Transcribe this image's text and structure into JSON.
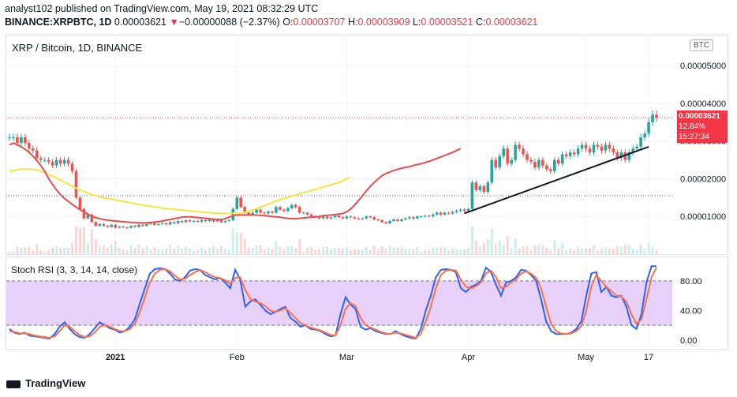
{
  "header": {
    "line1": "analyst102 published on TradingView.com, May 19, 2021 08:32:29 UTC",
    "symbol": "BINANCE:XRPBTC, 1D",
    "last": "0.00003621",
    "change_arrow": "▼",
    "change": "−0.00000088 (−2.37%)",
    "o_label": "O:",
    "o": "0.00003707",
    "h_label": "H:",
    "h": "0.00003909",
    "l_label": "L:",
    "l": "0.00003521",
    "c_label": "C:",
    "c": "0.00003621"
  },
  "chart_title": "XRP / Bitcoin, 1D, BINANCE",
  "currency_badge": "BTC",
  "price_tag": {
    "price": "0.00003621",
    "pct": "12.84%",
    "countdown": "15:27:34"
  },
  "rsi_title": "Stoch RSI (3, 3, 14, 14, close)",
  "footer": {
    "brand": "TradingView"
  },
  "colors": {
    "up": "#26a69a",
    "down": "#ef5350",
    "ema_fast": "#e84c4c",
    "ema_slow": "#f5e642",
    "rsi_k": "#2962ff",
    "rsi_d": "#ff7043",
    "rsi_band": "#e1c4f7"
  },
  "chart_data": [
    {
      "type": "candlestick",
      "ylim": [
        0,
        5.8e-05
      ],
      "y_ticks": [
        "0.00004000",
        "0.00003000",
        "0.00002000",
        "0.00001000",
        "0.00005000"
      ],
      "y_tick_values": [
        4e-05,
        3e-05,
        2e-05,
        1e-05,
        5e-05
      ],
      "x_ticks": [
        "2021",
        "Feb",
        "Mar",
        "Apr",
        "May",
        "17"
      ],
      "x_tick_index": [
        27,
        58,
        86,
        117,
        147,
        163
      ],
      "close": [
        3.1e-05,
        3.1e-05,
        2.95e-05,
        3.1e-05,
        2.95e-05,
        2.8e-05,
        2.75e-05,
        2.55e-05,
        2.5e-05,
        2.5e-05,
        2.45e-05,
        2.35e-05,
        2.5e-05,
        2.4e-05,
        2.5e-05,
        2.4e-05,
        2.2e-05,
        1.5e-05,
        1.2e-05,
        9.5e-06,
        1.05e-05,
        8.5e-06,
        7.5e-06,
        8e-06,
        7.5e-06,
        7.2e-06,
        7.8e-06,
        7e-06,
        7.3e-06,
        7.1e-06,
        7e-06,
        7.5e-06,
        7.2e-06,
        7.8e-06,
        7.5e-06,
        8e-06,
        8.2e-06,
        7.8e-06,
        8e-06,
        8.2e-06,
        7.9e-06,
        8.5e-06,
        8.2e-06,
        8.8e-06,
        8.5e-06,
        9e-06,
        8.7e-06,
        8.8e-06,
        8.6e-06,
        9e-06,
        8.8e-06,
        9.2e-06,
        8.7e-06,
        9e-06,
        8.5e-06,
        8.8e-06,
        9e-06,
        1.2e-05,
        1.5e-05,
        1.25e-05,
        1.1e-05,
        1.05e-05,
        1.1e-05,
        1.18e-05,
        1.1e-05,
        1.08e-05,
        1.13e-05,
        1.1e-05,
        1.25e-05,
        1.18e-05,
        1.15e-05,
        1.22e-05,
        1.3e-05,
        1.25e-05,
        1.1e-05,
        1.1e-05,
        1.05e-05,
        1e-05,
        9.8e-06,
        9.5e-06,
        1e-05,
        9.5e-06,
        9.8e-06,
        1.02e-05,
        9.8e-06,
        9.5e-06,
        1e-05,
        9.8e-06,
        9.5e-06,
        9.3e-06,
        9.5e-06,
        1e-05,
        9.8e-06,
        9.2e-06,
        9e-06,
        8.5e-06,
        8.2e-06,
        8.8e-06,
        9.2e-06,
        8.8e-06,
        9.2e-06,
        9.5e-06,
        9.8e-06,
        9.5e-06,
        1e-05,
        1e-05,
        1.02e-05,
        1e-05,
        1.05e-05,
        1.1e-05,
        1.05e-05,
        1.1e-05,
        1.08e-05,
        1.12e-05,
        1.15e-05,
        1.18e-05,
        1.15e-05,
        1.2e-05,
        1.9e-05,
        1.7e-05,
        1.8e-05,
        1.65e-05,
        1.9e-05,
        2.5e-05,
        2.3e-05,
        2.6e-05,
        2.8e-05,
        2.4e-05,
        2.5e-05,
        2.9e-05,
        2.8e-05,
        2.65e-05,
        2.5e-05,
        2.45e-05,
        2.3e-05,
        2.5e-05,
        2.35e-05,
        2.25e-05,
        2.2e-05,
        2.5e-05,
        2.4e-05,
        2.65e-05,
        2.6e-05,
        2.7e-05,
        2.65e-05,
        2.8e-05,
        2.9e-05,
        2.8e-05,
        2.7e-05,
        2.9e-05,
        2.85e-05,
        2.75e-05,
        2.9e-05,
        2.8e-05,
        2.7e-05,
        2.55e-05,
        2.7e-05,
        2.5e-05,
        2.7e-05,
        2.8e-05,
        2.85e-05,
        3.1e-05,
        3.2e-05,
        3.5e-05,
        3.7e-05,
        3.621e-05
      ],
      "ema_fast": [
        2.9e-05,
        2.95e-05,
        2.9e-05,
        2.85e-05,
        2.78e-05,
        2.7e-05,
        2.6e-05,
        2.48e-05,
        2.35e-05,
        2.2e-05,
        2e-05,
        1.85e-05,
        1.7e-05,
        1.58e-05,
        1.48e-05,
        1.4e-05,
        1.32e-05,
        1.25e-05,
        1.18e-05,
        1.12e-05,
        1.06e-05,
        1.01e-05,
        9.7e-06,
        9.4e-06,
        9.2e-06,
        9e-06,
        8.9e-06,
        8.8e-06,
        8.7e-06,
        8.6e-06,
        8.5e-06,
        8.4e-06,
        8.4e-06,
        8.3e-06,
        8.3e-06,
        8.3e-06,
        8.4e-06,
        8.5e-06,
        8.6e-06,
        8.8e-06,
        9e-06,
        9.2e-06,
        9.4e-06,
        9.6e-06,
        9.8e-06,
        9.9e-06,
        9.9e-06,
        9.8e-06,
        9.7e-06,
        9.6e-06,
        9.5e-06,
        9.4e-06,
        9.3e-06,
        9.2e-06,
        9.2e-06,
        9.4e-06,
        9.8e-06,
        1.02e-05,
        1.04e-05,
        1.04e-05,
        1.04e-05,
        1.04e-05,
        1.04e-05,
        1.04e-05,
        1.03e-05,
        1.02e-05,
        1.01e-05,
        1e-05,
        9.9e-06,
        9.8e-06,
        9.6e-06,
        9.5e-06,
        9.4e-06,
        9.4e-06,
        9.5e-06,
        9.6e-06,
        9.7e-06,
        9.8e-06,
        9.9e-06,
        1e-05,
        1.02e-05,
        1.03e-05,
        1.04e-05,
        1.05e-05,
        1.06e-05,
        1.08e-05,
        1.12e-05,
        1.2e-05,
        1.3e-05,
        1.42e-05,
        1.55e-05,
        1.68e-05,
        1.8e-05,
        1.9e-05,
        2e-05,
        2.08e-05,
        2.14e-05,
        2.18e-05,
        2.22e-05,
        2.25e-05,
        2.28e-05,
        2.3e-05,
        2.32e-05,
        2.35e-05,
        2.38e-05,
        2.4e-05,
        2.43e-05,
        2.46e-05,
        2.5e-05,
        2.54e-05,
        2.58e-05,
        2.62e-05,
        2.66e-05,
        2.7e-05,
        2.75e-05,
        2.8e-05
      ],
      "ema_slow": [
        2.2e-05,
        2.22e-05,
        2.24e-05,
        2.25e-05,
        2.26e-05,
        2.26e-05,
        2.25e-05,
        2.23e-05,
        2.2e-05,
        2.16e-05,
        2.12e-05,
        2.07e-05,
        2.02e-05,
        1.97e-05,
        1.91e-05,
        1.86e-05,
        1.8e-05,
        1.75e-05,
        1.7e-05,
        1.66e-05,
        1.62e-05,
        1.58e-05,
        1.55e-05,
        1.52e-05,
        1.5e-05,
        1.48e-05,
        1.46e-05,
        1.44e-05,
        1.42e-05,
        1.4e-05,
        1.38e-05,
        1.36e-05,
        1.34e-05,
        1.32e-05,
        1.3e-05,
        1.28e-05,
        1.27e-05,
        1.25e-05,
        1.24e-05,
        1.22e-05,
        1.21e-05,
        1.2e-05,
        1.19e-05,
        1.18e-05,
        1.17e-05,
        1.16e-05,
        1.15e-05,
        1.14e-05,
        1.13e-05,
        1.12e-05,
        1.11e-05,
        1.1e-05,
        1.09e-05,
        1.09e-05,
        1.08e-05,
        1.08e-05,
        1.08e-05,
        1.08e-05,
        1.08e-05,
        1.09e-05,
        1.11e-05,
        1.14e-05,
        1.17e-05,
        1.21e-05,
        1.25e-05,
        1.29e-05,
        1.33e-05,
        1.37e-05,
        1.41e-05,
        1.45e-05,
        1.48e-05,
        1.51e-05,
        1.54e-05,
        1.57e-05,
        1.6e-05,
        1.63e-05,
        1.66e-05,
        1.69e-05,
        1.72e-05,
        1.75e-05,
        1.78e-05,
        1.81e-05,
        1.84e-05,
        1.87e-05,
        1.9e-05,
        1.95e-05,
        2e-05,
        2.05e-05
      ],
      "trendlines": [
        {
          "from": [
            116,
            1.08e-05
          ],
          "to": [
            163,
            2.85e-05
          ],
          "color": "#131722"
        }
      ],
      "hlines": [
        {
          "y": 3.621e-05,
          "style": "dotted",
          "color": "#f23645"
        },
        {
          "y": 1.55e-05,
          "style": "dotted",
          "color": "#787b86"
        }
      ]
    },
    {
      "type": "line",
      "ylim": [
        -12,
        112
      ],
      "y_ticks": [
        "80.00",
        "40.00",
        "0.00"
      ],
      "y_tick_values": [
        80,
        40,
        0
      ],
      "band": [
        20,
        80
      ],
      "series": [
        {
          "name": "K",
          "values": [
            15,
            10,
            8,
            10,
            6,
            5,
            4,
            3,
            2,
            8,
            18,
            24,
            15,
            8,
            4,
            3,
            8,
            16,
            24,
            20,
            16,
            14,
            10,
            12,
            18,
            28,
            50,
            70,
            90,
            96,
            97,
            96,
            90,
            82,
            80,
            85,
            94,
            96,
            95,
            88,
            85,
            82,
            84,
            78,
            70,
            95,
            82,
            45,
            52,
            55,
            48,
            40,
            35,
            38,
            42,
            45,
            30,
            25,
            18,
            20,
            15,
            14,
            12,
            8,
            5,
            6,
            35,
            58,
            48,
            42,
            18,
            14,
            16,
            12,
            10,
            8,
            8,
            12,
            8,
            5,
            3,
            2,
            15,
            40,
            60,
            85,
            95,
            96,
            95,
            92,
            70,
            65,
            72,
            75,
            80,
            98,
            92,
            75,
            60,
            78,
            80,
            85,
            95,
            94,
            88,
            80,
            55,
            25,
            12,
            8,
            8,
            8,
            10,
            15,
            25,
            60,
            90,
            92,
            65,
            72,
            60,
            58,
            60,
            45,
            20,
            15,
            35,
            78,
            100,
            100
          ]
        },
        {
          "name": "D",
          "values": [
            12,
            11,
            9,
            9,
            8,
            6,
            5,
            4,
            3,
            5,
            12,
            20,
            18,
            12,
            7,
            4,
            5,
            10,
            18,
            20,
            18,
            15,
            12,
            12,
            15,
            22,
            38,
            58,
            78,
            90,
            95,
            96,
            93,
            87,
            82,
            83,
            88,
            92,
            95,
            92,
            88,
            85,
            84,
            81,
            76,
            84,
            85,
            68,
            56,
            52,
            50,
            46,
            40,
            38,
            40,
            43,
            37,
            30,
            23,
            20,
            17,
            15,
            13,
            10,
            7,
            6,
            20,
            42,
            50,
            46,
            30,
            20,
            17,
            14,
            11,
            9,
            8,
            10,
            9,
            7,
            5,
            3,
            8,
            25,
            45,
            70,
            88,
            94,
            95,
            94,
            82,
            72,
            70,
            73,
            78,
            90,
            94,
            85,
            70,
            72,
            78,
            82,
            90,
            93,
            90,
            84,
            70,
            45,
            22,
            12,
            9,
            8,
            9,
            12,
            19,
            40,
            72,
            88,
            80,
            72,
            66,
            60,
            59,
            52,
            35,
            22,
            28,
            55,
            85,
            98
          ]
        }
      ]
    }
  ]
}
